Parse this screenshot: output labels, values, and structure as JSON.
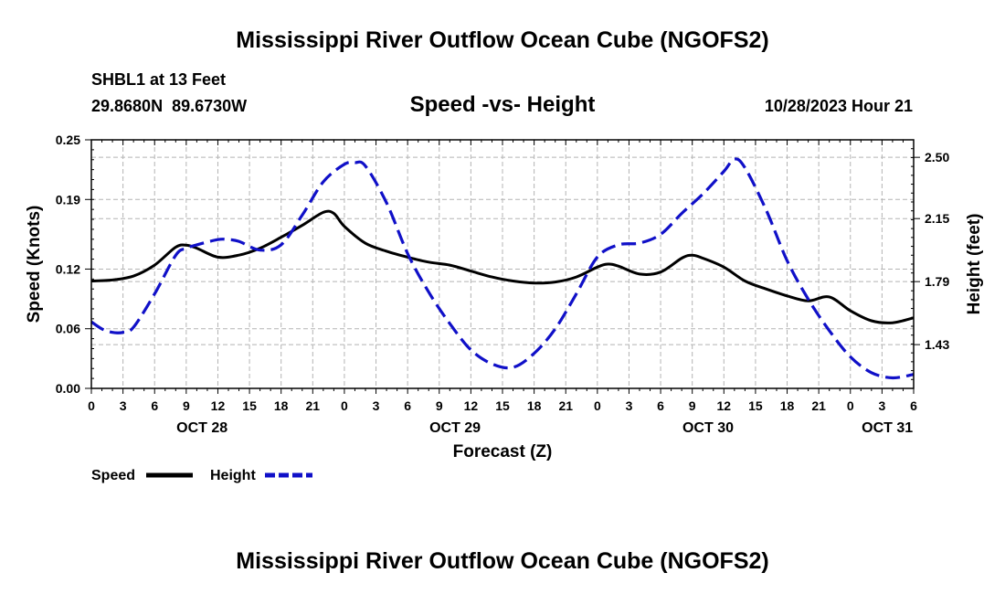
{
  "page": {
    "title": "Mississippi River Outflow Ocean Cube (NGOFS2)",
    "station": "SHBL1 at 13 Feet",
    "coords": "29.8680N  89.6730W",
    "datetime": "10/28/2023 Hour 21",
    "footer_title": "Mississippi River Outflow Ocean Cube (NGOFS2)"
  },
  "chart_data": {
    "type": "line",
    "title": "Speed -vs- Height",
    "xlabel": "Forecast (Z)",
    "ylabel": "Speed (Knots)",
    "y2label": "Height (feet)",
    "x_unit": "hours from Oct 28 00Z",
    "xlim": [
      0,
      78
    ],
    "ylim": [
      0,
      0.25
    ],
    "y2lim": [
      1.18,
      2.6
    ],
    "x_ticks": [
      0,
      3,
      6,
      9,
      12,
      15,
      18,
      21,
      24,
      27,
      30,
      33,
      36,
      39,
      42,
      45,
      48,
      51,
      54,
      57,
      60,
      63,
      66,
      69,
      72,
      75,
      78
    ],
    "x_tick_labels": [
      "0",
      "3",
      "6",
      "9",
      "12",
      "15",
      "18",
      "21",
      "0",
      "3",
      "6",
      "9",
      "12",
      "15",
      "18",
      "21",
      "0",
      "3",
      "6",
      "9",
      "12",
      "15",
      "18",
      "21",
      "0",
      "3",
      "6"
    ],
    "y_ticks": [
      0.0,
      0.06,
      0.12,
      0.19,
      0.25
    ],
    "y_tick_labels": [
      "0.00",
      "0.06",
      "0.12",
      "0.19",
      "0.25"
    ],
    "y2_ticks": [
      1.43,
      1.79,
      2.15,
      2.5
    ],
    "y2_tick_labels": [
      "1.43",
      "1.79",
      "2.15",
      "2.50"
    ],
    "day_labels": [
      {
        "x": 10.5,
        "label": "OCT 28"
      },
      {
        "x": 34.5,
        "label": "OCT 29"
      },
      {
        "x": 58.5,
        "label": "OCT 30"
      },
      {
        "x": 75.5,
        "label": "OCT 31"
      }
    ],
    "grid": true,
    "legend_position": "bottom-left",
    "series": [
      {
        "name": "Speed",
        "axis": "left",
        "color": "#000000",
        "style": "solid",
        "x": [
          0,
          2,
          4,
          6,
          8,
          9,
          10,
          12,
          14,
          16,
          18,
          20,
          22,
          23,
          24,
          26,
          28,
          30,
          32,
          34,
          36,
          38,
          40,
          42,
          44,
          46,
          48,
          49,
          50,
          52,
          54,
          56,
          57,
          58,
          60,
          62,
          64,
          66,
          68,
          70,
          72,
          74,
          76,
          78
        ],
        "values": [
          0.108,
          0.109,
          0.113,
          0.124,
          0.142,
          0.144,
          0.141,
          0.132,
          0.134,
          0.141,
          0.152,
          0.164,
          0.177,
          0.176,
          0.163,
          0.146,
          0.138,
          0.132,
          0.127,
          0.124,
          0.118,
          0.112,
          0.108,
          0.106,
          0.107,
          0.112,
          0.122,
          0.125,
          0.123,
          0.115,
          0.117,
          0.131,
          0.134,
          0.131,
          0.122,
          0.108,
          0.1,
          0.093,
          0.088,
          0.092,
          0.078,
          0.068,
          0.066,
          0.071
        ]
      },
      {
        "name": "Height",
        "axis": "right",
        "color": "#1010c8",
        "style": "dashed",
        "x": [
          0,
          1,
          2,
          3,
          4,
          6,
          8,
          9,
          10,
          12,
          13,
          14,
          16,
          18,
          20,
          22,
          24,
          25,
          26,
          28,
          30,
          32,
          34,
          36,
          38,
          40,
          42,
          44,
          46,
          48,
          50,
          52,
          54,
          56,
          58,
          60,
          61,
          62,
          64,
          66,
          68,
          70,
          72,
          74,
          76,
          78
        ],
        "values": [
          1.56,
          1.52,
          1.5,
          1.5,
          1.53,
          1.72,
          1.94,
          1.98,
          2.0,
          2.03,
          2.03,
          2.02,
          1.97,
          2.0,
          2.17,
          2.36,
          2.46,
          2.47,
          2.45,
          2.24,
          1.95,
          1.73,
          1.55,
          1.4,
          1.32,
          1.3,
          1.38,
          1.52,
          1.72,
          1.93,
          2.0,
          2.01,
          2.06,
          2.18,
          2.29,
          2.42,
          2.49,
          2.44,
          2.2,
          1.91,
          1.69,
          1.51,
          1.36,
          1.27,
          1.24,
          1.26
        ]
      }
    ]
  }
}
